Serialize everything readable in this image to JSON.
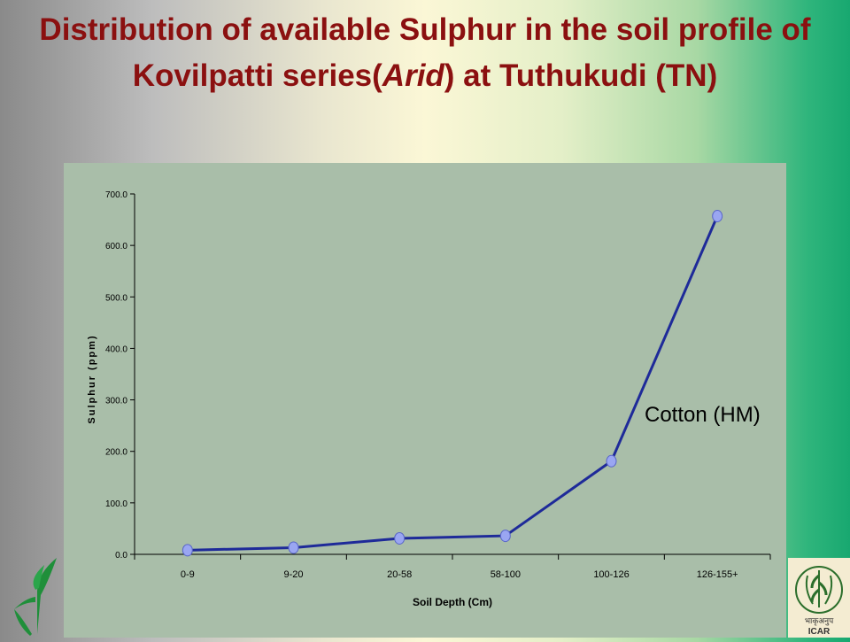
{
  "title": {
    "part1": "Distribution of available Sulphur in the soil profile of Kovilpatti series(",
    "italic": "Arid",
    "part2": ") at Tuthukudi (TN)"
  },
  "chart_data": {
    "type": "line",
    "categories": [
      "0-9",
      "9-20",
      "20-58",
      "58-100",
      "100-126",
      "126-155+"
    ],
    "series": [
      {
        "name": "Cotton (HM)",
        "values": [
          8,
          13,
          31,
          36,
          181,
          657
        ]
      }
    ],
    "ylabel": "Sulphur (ppm)",
    "xlabel": "Soil Depth (Cm)",
    "ylim": [
      0,
      700
    ],
    "yticks": [
      "0.0",
      "100.0",
      "200.0",
      "300.0",
      "400.0",
      "500.0",
      "600.0",
      "700.0"
    ],
    "annotation": "Cotton (HM)",
    "grid": false,
    "line_color": "#1e2a99",
    "marker_color": "#9aa6f2"
  },
  "logos": {
    "right_label": "ICAR",
    "right_hindi": "भाकृअनुप"
  }
}
